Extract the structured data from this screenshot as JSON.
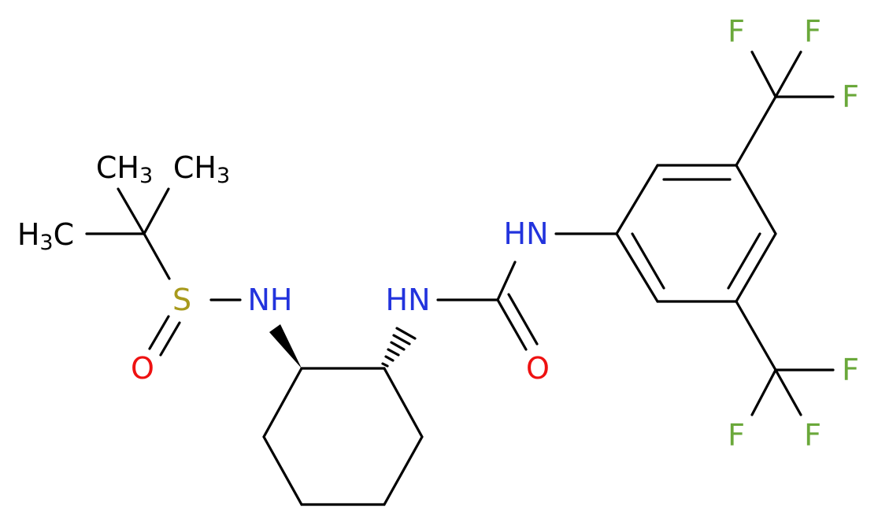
{
  "atoms": {
    "methyl_1": {
      "label": "CH",
      "sub": "3"
    },
    "methyl_2": {
      "label": "CH",
      "sub": "3"
    },
    "methyl_3": {
      "pre": "H",
      "sub": "3",
      "label": "C"
    },
    "sulfur": "S",
    "sulfinyl_oxygen": "O",
    "sulfinamide_nh": "NH",
    "urea_nh_1": "HN",
    "urea_oxygen": "O",
    "urea_nh_2": "HN",
    "fluorines": [
      "F",
      "F",
      "F",
      "F",
      "F",
      "F"
    ]
  }
}
